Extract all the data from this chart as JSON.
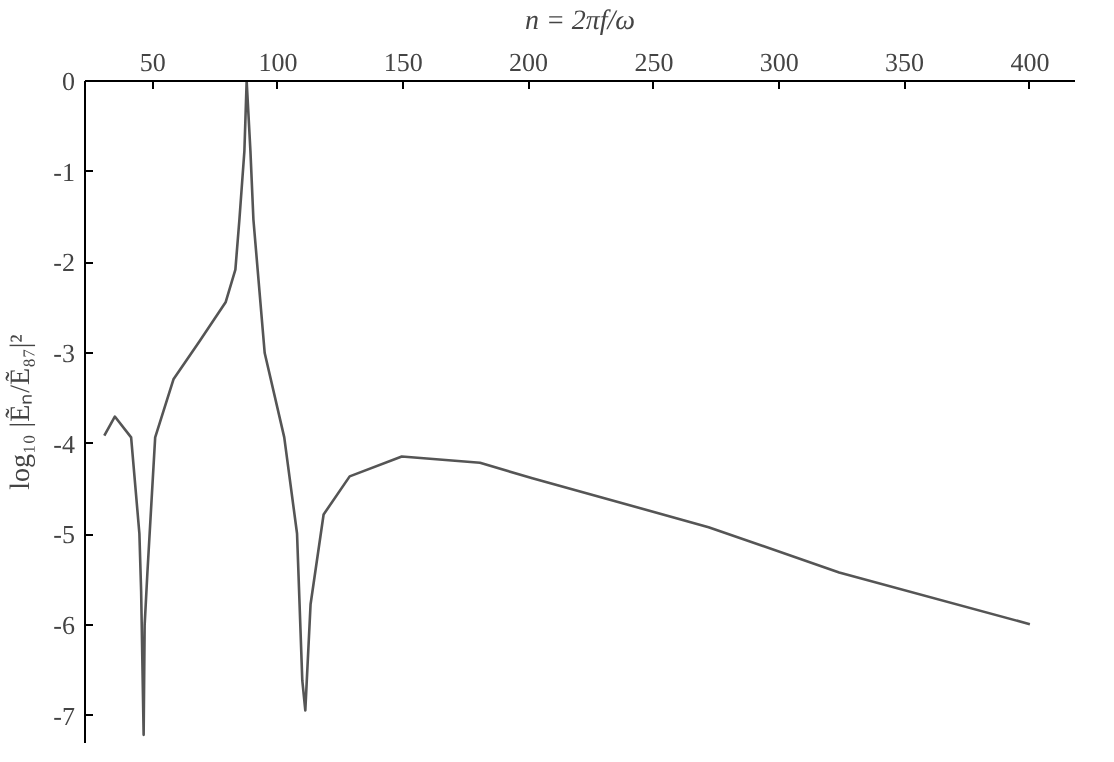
{
  "chart_data": {
    "type": "line",
    "xlabel": "n = 2πf/ω",
    "ylabel": "log₁₀ |Ẽₙ/Ẽ₈₇|²",
    "x": [
      30.7,
      34.9,
      41.4,
      44.7,
      45.4,
      46.4,
      46.8,
      47.9,
      51,
      58.3,
      68.7,
      79.1,
      83,
      84.6,
      86.6,
      87.5,
      89,
      90.2,
      94.7,
      102.5,
      107.6,
      109.7,
      110.9,
      113,
      118.2,
      128.6,
      149.4,
      180.6,
      201.5,
      271.8,
      323.9,
      400
    ],
    "series": [
      {
        "color": "#555555",
        "values": [
          -3.91,
          -3.7,
          -3.93,
          -4.99,
          -5.63,
          -7.21,
          -6.0,
          -5.42,
          -3.93,
          -3.29,
          -2.87,
          -2.44,
          -2.08,
          -1.53,
          -0.77,
          0,
          -0.77,
          -1.53,
          -3.0,
          -3.93,
          -4.99,
          -6.61,
          -6.94,
          -5.77,
          -4.78,
          -4.36,
          -4.14,
          -4.21,
          -4.38,
          -4.92,
          -5.42,
          -5.99
        ]
      }
    ],
    "xlim": [
      23,
      418
    ],
    "ylim": [
      -7.3,
      0
    ],
    "xticks": [
      50,
      100,
      150,
      200,
      250,
      300,
      350,
      400
    ],
    "yticks": [
      0,
      -1,
      -2,
      -3,
      -4,
      -5,
      -6,
      -7
    ],
    "grid": false,
    "marker": "none",
    "line_style": "solid"
  }
}
